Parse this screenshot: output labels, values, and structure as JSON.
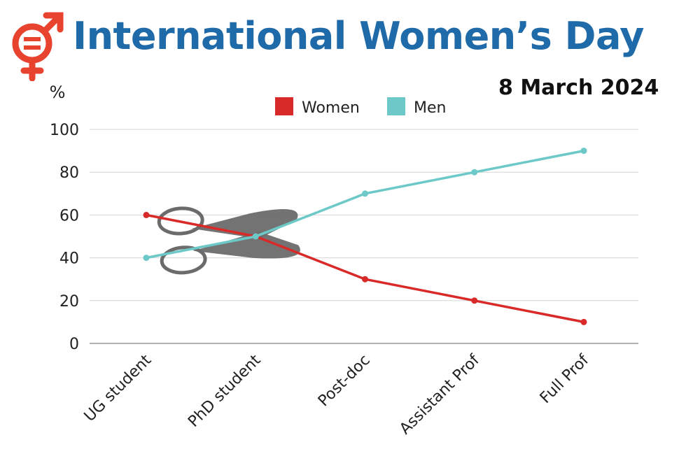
{
  "header": {
    "title": "International Women’s Day",
    "date": "8 March 2024",
    "title_color": "#1f6aa8",
    "logo_color": "#e8432f",
    "logo_icon": "gender-equality-icon"
  },
  "decoration": {
    "icon": "scissors-icon",
    "color": "#6b6b6b"
  },
  "chart_data": {
    "type": "line",
    "categories": [
      "UG student",
      "PhD student",
      "Post-doc",
      "Assistant Prof",
      "Full Prof"
    ],
    "series": [
      {
        "name": "Women",
        "values": [
          60,
          50,
          30,
          20,
          10
        ],
        "color": "#d92a2a"
      },
      {
        "name": "Men",
        "values": [
          40,
          50,
          70,
          80,
          90
        ],
        "color": "#6cc9c8"
      }
    ],
    "ylabel": "%",
    "ylim": [
      0,
      100
    ],
    "yticks": [
      0,
      20,
      40,
      60,
      80,
      100
    ],
    "grid": true,
    "legend_position": "top-center"
  }
}
